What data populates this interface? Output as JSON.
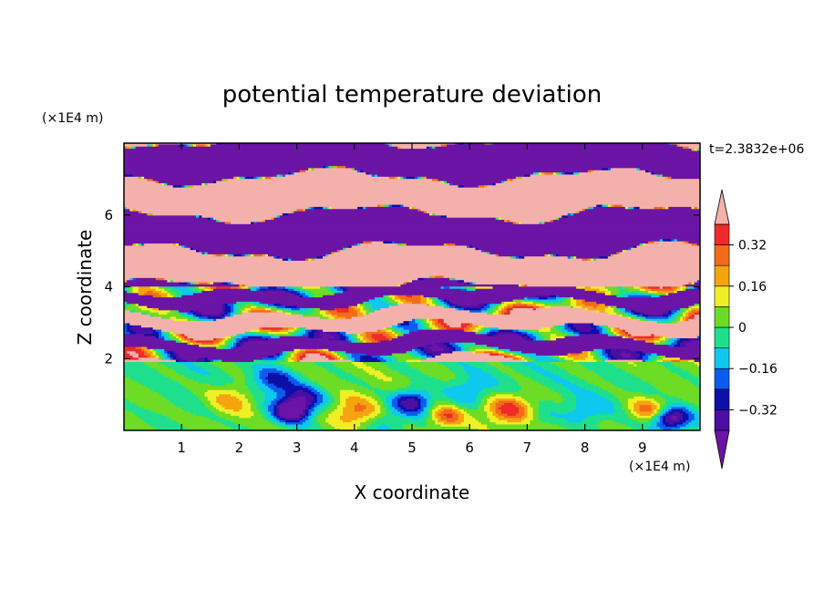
{
  "chart_data": {
    "type": "heatmap",
    "title": "potential temperature deviation",
    "xlabel": "X coordinate",
    "ylabel": "Z coordinate",
    "x_unit_label": "(×1E4 m)",
    "y_unit_label": "(×1E4 m)",
    "time_label": "t=2.3832e+06",
    "xlim": [
      0,
      10
    ],
    "ylim": [
      0,
      8
    ],
    "x_ticks": [
      1,
      2,
      3,
      4,
      5,
      6,
      7,
      8,
      9
    ],
    "y_ticks": [
      2,
      4,
      6
    ],
    "grid": false,
    "colorbar": {
      "placement": "right",
      "levels": [
        -0.4,
        -0.32,
        -0.24,
        -0.16,
        -0.08,
        0,
        0.08,
        0.16,
        0.24,
        0.32,
        0.4
      ],
      "colors": [
        "#4b0fa6",
        "#0c0fa8",
        "#0a5cf0",
        "#0ec8ee",
        "#1ee08c",
        "#6cdc24",
        "#eef025",
        "#f5a40e",
        "#f26a1a",
        "#ee2a2a"
      ],
      "under_color": "#6b14a6",
      "over_color": "#f4b1ab",
      "tick_labels": [
        "0.32",
        "0.16",
        "0",
        "−0.16",
        "−0.32"
      ],
      "tick_values": [
        0.32,
        0.16,
        0,
        -0.16,
        -0.32
      ]
    }
  }
}
